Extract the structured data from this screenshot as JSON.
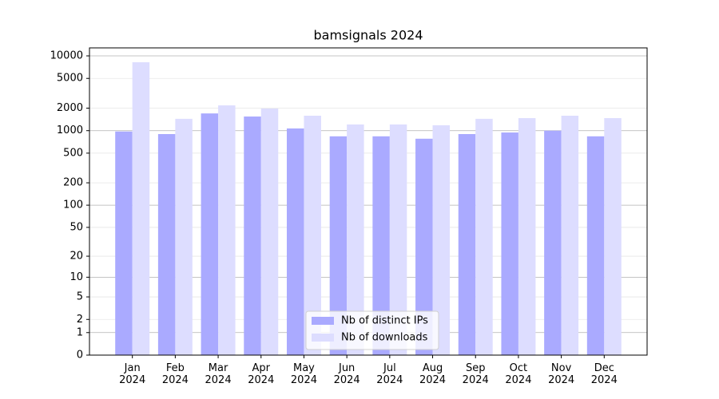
{
  "chart_data": {
    "type": "bar",
    "title": "bamsignals 2024",
    "categories": [
      "Jan\n2024",
      "Feb\n2024",
      "Mar\n2024",
      "Apr\n2024",
      "May\n2024",
      "Jun\n2024",
      "Jul\n2024",
      "Aug\n2024",
      "Sep\n2024",
      "Oct\n2024",
      "Nov\n2024",
      "Dec\n2024"
    ],
    "series": [
      {
        "name": "Nb of distinct IPs",
        "color": "#aaaaff",
        "values": [
          975,
          900,
          1700,
          1545,
          1070,
          840,
          840,
          780,
          900,
          945,
          1000,
          840
        ]
      },
      {
        "name": "Nb of downloads",
        "color": "#ddddff",
        "values": [
          8220,
          1440,
          2180,
          1975,
          1585,
          1210,
          1210,
          1180,
          1440,
          1470,
          1585,
          1470
        ]
      }
    ],
    "ylim": [
      0,
      12790
    ],
    "yscale": "log1p",
    "yticks": [
      0,
      1,
      2,
      5,
      10,
      20,
      50,
      100,
      200,
      500,
      1000,
      2000,
      5000,
      10000
    ],
    "grid": true,
    "legend": "lower center"
  }
}
